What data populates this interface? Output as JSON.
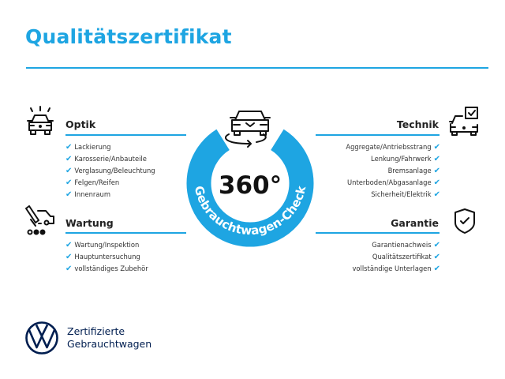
{
  "title": "Qualitätszertifikat",
  "brand_color": "#1ea5e2",
  "logo_color": "#001e50",
  "center": {
    "big_text": "360°",
    "ring_text": "Gebrauchtwagen-Check",
    "icon": "rotating-car-icon"
  },
  "sections": {
    "optik": {
      "heading": "Optik",
      "icon": "car-lights-icon",
      "items": [
        "Lackierung",
        "Karosserie/Anbauteile",
        "Verglasung/Beleuchtung",
        "Felgen/Reifen",
        "Innenraum"
      ]
    },
    "wartung": {
      "heading": "Wartung",
      "icon": "service-van-icon",
      "items": [
        "Wartung/Inspektion",
        "Hauptuntersuchung",
        "vollständiges Zubehör"
      ]
    },
    "technik": {
      "heading": "Technik",
      "icon": "car-checkbox-icon",
      "items": [
        "Aggregate/Antriebsstrang",
        "Lenkung/Fahrwerk",
        "Bremsanlage",
        "Unterboden/Abgasanlage",
        "Sicherheit/Elektrik"
      ]
    },
    "garantie": {
      "heading": "Garantie",
      "icon": "shield-check-icon",
      "items": [
        "Garantienachweis",
        "Qualitätszertifikat",
        "vollständige Unterlagen"
      ]
    }
  },
  "check_glyph": "✔",
  "footer": {
    "logo": "vw-logo",
    "line1": "Zertifizierte",
    "line2": "Gebrauchtwagen"
  }
}
